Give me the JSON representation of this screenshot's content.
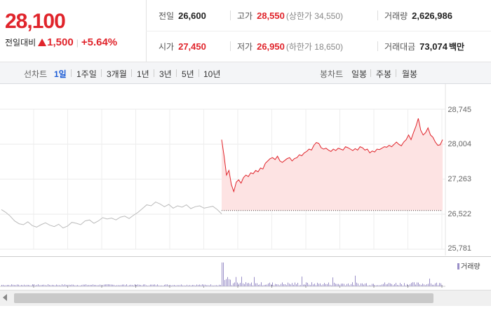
{
  "quote": {
    "price": "28,100",
    "change_label": "전일대비",
    "change_amount": "1,500",
    "change_pct": "+5.64%"
  },
  "stats": {
    "prev_close_label": "전일",
    "prev_close": "26,600",
    "high_label": "고가",
    "high": "28,550",
    "upper_limit": "(상한가 34,550)",
    "volume_label": "거래량",
    "volume": "2,626,986",
    "open_label": "시가",
    "open": "27,450",
    "low_label": "저가",
    "low": "26,950",
    "lower_limit": "(하한가 18,650)",
    "amount_label": "거래대금",
    "amount": "73,074",
    "amount_unit": "백만"
  },
  "toolbar": {
    "line_label": "선차트",
    "line_ranges": [
      "1일",
      "1주일",
      "3개월",
      "1년",
      "3년",
      "5년",
      "10년"
    ],
    "active_range": "1일",
    "candle_label": "봉차트",
    "candle_ranges": [
      "일봉",
      "주봉",
      "월봉"
    ]
  },
  "volume_legend": "거래량",
  "colors": {
    "up": "#e0242b",
    "area_fill": "#fde3e3",
    "prev_line": "#bbbbbb",
    "volume": "#9a8fc8",
    "active_tab": "#1a5bd6"
  },
  "chart_data": {
    "type": "line",
    "y_ticks": [
      "28,745",
      "28,004",
      "27,263",
      "26,522",
      "25,781"
    ],
    "ylim": [
      25781,
      28745
    ],
    "reference_line": 26600,
    "series": [
      {
        "values": [
          26620,
          26560,
          26480,
          26380,
          26320,
          26300,
          26360,
          26280,
          26250,
          26300,
          26340,
          26290,
          26260,
          26310,
          26230,
          26270,
          26350,
          26330,
          26300,
          26380,
          26400,
          26330,
          26380,
          26450,
          26420,
          26440,
          26400,
          26460,
          26480,
          26430,
          26500,
          26560,
          26640,
          26720,
          26700,
          26780,
          26740,
          26680,
          26730,
          26650,
          26700,
          26670,
          26720,
          26640,
          26680,
          26700,
          26650,
          26670,
          26690,
          26620,
          26530
        ]
      },
      {
        "values": [
          28100,
          27750,
          27350,
          27450,
          27150,
          27000,
          27200,
          27250,
          27180,
          27300,
          27350,
          27320,
          27400,
          27380,
          27450,
          27420,
          27500,
          27480,
          27600,
          27650,
          27700,
          27720,
          27680,
          27750,
          27650,
          27620,
          27660,
          27700,
          27720,
          27650,
          27700,
          27720,
          27780,
          27760,
          27820,
          27850,
          27900,
          27880,
          27980,
          28040,
          28020,
          27930,
          27900,
          27920,
          27880,
          27850,
          27900,
          27870,
          27920,
          27900,
          27880,
          27950,
          27930,
          27900,
          27870,
          27910,
          27880,
          27950,
          27930,
          27880,
          27900,
          27820,
          27860,
          27840,
          27900,
          27890,
          27920,
          27950,
          27940,
          27980,
          27950,
          28000,
          28050,
          28000,
          27970,
          28050,
          28100,
          28200,
          28100,
          28250,
          28380,
          28550,
          28300,
          28200,
          28250,
          28350,
          28200,
          28150,
          28050,
          27980,
          27990,
          28100
        ]
      }
    ]
  }
}
